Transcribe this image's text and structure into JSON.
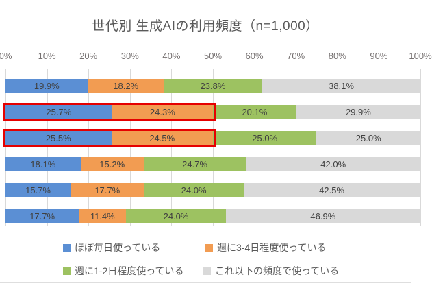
{
  "title": "世代別 生成AIの利用頻度（n=1,000）",
  "chart_data": {
    "type": "bar",
    "orientation": "horizontal",
    "stacked": true,
    "rows": 6,
    "x_ticks": [
      "0%",
      "10%",
      "20%",
      "30%",
      "40%",
      "50%",
      "60%",
      "70%",
      "80%",
      "90%",
      "100%"
    ],
    "x_range": [
      0,
      100
    ],
    "grid": true,
    "legend_position": "bottom",
    "series": [
      {
        "name": "ほぼ毎日使っている",
        "color": "#5B8FD4",
        "values": [
          19.9,
          25.7,
          25.5,
          18.1,
          15.7,
          17.7
        ]
      },
      {
        "name": "週に3-4日程度使っている",
        "color": "#F29C52",
        "values": [
          18.2,
          24.3,
          24.5,
          15.2,
          17.7,
          11.4
        ]
      },
      {
        "name": "週に1-2日程度使っている",
        "color": "#9DC261",
        "values": [
          23.8,
          20.1,
          25.0,
          24.7,
          24.0,
          24.0
        ]
      },
      {
        "name": "これ以下の頻度で使っている",
        "color": "#D9D9D9",
        "values": [
          38.1,
          29.9,
          25.0,
          42.0,
          42.5,
          46.9
        ]
      }
    ],
    "highlights": {
      "rows": [
        1,
        2
      ],
      "series_span": [
        0,
        1
      ],
      "color": "#E60000"
    }
  },
  "colors": {
    "title_text": "#595959",
    "axis_text": "#767171",
    "segment_label_text": "#404040",
    "gridline": "#D9D9D9",
    "highlight_border": "#E60000"
  }
}
